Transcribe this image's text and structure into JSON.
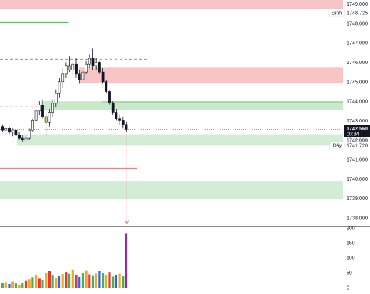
{
  "chart_data": {
    "type": "candlestick",
    "y_axis": {
      "range": [
        1737.6,
        1749.2
      ],
      "tick_labels": [
        "1749.000",
        "1748.000",
        "1747.000",
        "1746.000",
        "1745.000",
        "1744.000",
        "1743.000",
        "1742.000",
        "1741.000",
        "1740.000",
        "1739.000",
        "1738.000"
      ]
    },
    "current_price": {
      "label": "1742.560",
      "countdown": "00:34",
      "value": 1742.56,
      "color": "#131722"
    },
    "top_marker": {
      "tag": "Đỉnh",
      "label": "1748.725",
      "value": 1748.725
    },
    "bottom_marker": {
      "tag": "Đáy",
      "label": "1741.720",
      "value": 1741.72
    },
    "hidden_label": {
      "label": "1742.006",
      "value": 1742.006
    },
    "zones": [
      {
        "color": "#f7c5c5",
        "from": 1748.725,
        "to": 1749.25,
        "x_from": 0.0,
        "x_to": 1.0
      },
      {
        "color": "#f7c5c5",
        "from": 1744.95,
        "to": 1745.75,
        "x_from": 0.23,
        "x_to": 1.0
      },
      {
        "color": "#c9e9cb",
        "from": 1743.55,
        "to": 1744.0,
        "x_from": 0.12,
        "x_to": 1.0
      },
      {
        "color": "#a6d8aa",
        "from": 1743.9,
        "to": 1744.0,
        "x_from": 0.3,
        "x_to": 1.0
      },
      {
        "color": "#d3ecd5",
        "from": 1741.72,
        "to": 1742.3,
        "x_from": 0.05,
        "x_to": 1.0
      },
      {
        "color": "#d3ecd5",
        "from": 1738.95,
        "to": 1739.9,
        "x_from": 0.0,
        "x_to": 1.0
      }
    ],
    "lines": [
      {
        "value": 1747.5,
        "color": "#5b7bd5",
        "style": "solid",
        "x_from": 0.0,
        "x_to": 1.0
      },
      {
        "value": 1748.05,
        "color": "#4caf50",
        "style": "solid",
        "x_from": 0.0,
        "x_to": 0.2
      },
      {
        "value": 1746.15,
        "color": "#e57373",
        "style": "dashed",
        "x_from": 0.0,
        "x_to": 0.43
      },
      {
        "value": 1743.7,
        "color": "#e57373",
        "style": "dashed",
        "x_from": 0.0,
        "x_to": 0.12
      },
      {
        "value": 1740.55,
        "color": "#e57373",
        "style": "solid",
        "x_from": 0.0,
        "x_to": 0.4
      },
      {
        "value": 1742.56,
        "color": "#9e9e9e",
        "style": "dotted",
        "x_from": 0.0,
        "x_to": 1.0
      }
    ],
    "arrow": {
      "from": 1742.45,
      "to": 1737.7,
      "x": 0.37,
      "color": "#e57373"
    },
    "candles": [
      {
        "o": 1742.7,
        "h": 1742.8,
        "l": 1742.4,
        "c": 1742.5
      },
      {
        "o": 1742.5,
        "h": 1742.7,
        "l": 1742.3,
        "c": 1742.6
      },
      {
        "o": 1742.6,
        "h": 1742.7,
        "l": 1742.3,
        "c": 1742.4
      },
      {
        "o": 1742.4,
        "h": 1742.6,
        "l": 1742.2,
        "c": 1742.5
      },
      {
        "o": 1742.5,
        "h": 1742.75,
        "l": 1742.2,
        "c": 1742.25
      },
      {
        "o": 1742.25,
        "h": 1742.4,
        "l": 1742.0,
        "c": 1742.1
      },
      {
        "o": 1742.1,
        "h": 1742.25,
        "l": 1741.9,
        "c": 1742.0
      },
      {
        "o": 1742.0,
        "h": 1742.2,
        "l": 1741.72,
        "c": 1742.1
      },
      {
        "o": 1742.1,
        "h": 1742.6,
        "l": 1742.0,
        "c": 1742.5
      },
      {
        "o": 1742.5,
        "h": 1743.1,
        "l": 1742.4,
        "c": 1743.0
      },
      {
        "o": 1743.0,
        "h": 1743.6,
        "l": 1742.9,
        "c": 1743.5
      },
      {
        "o": 1743.5,
        "h": 1744.0,
        "l": 1743.3,
        "c": 1743.8
      },
      {
        "o": 1743.8,
        "h": 1744.1,
        "l": 1743.1,
        "c": 1743.2
      },
      {
        "o": 1743.2,
        "h": 1743.4,
        "l": 1742.2,
        "c": 1742.9
      },
      {
        "o": 1742.9,
        "h": 1743.6,
        "l": 1742.7,
        "c": 1743.4
      },
      {
        "o": 1743.4,
        "h": 1744.1,
        "l": 1743.2,
        "c": 1743.9
      },
      {
        "o": 1743.9,
        "h": 1744.6,
        "l": 1743.7,
        "c": 1744.4
      },
      {
        "o": 1744.4,
        "h": 1745.2,
        "l": 1744.2,
        "c": 1745.0
      },
      {
        "o": 1745.0,
        "h": 1745.7,
        "l": 1744.7,
        "c": 1745.4
      },
      {
        "o": 1745.4,
        "h": 1746.0,
        "l": 1745.2,
        "c": 1745.8
      },
      {
        "o": 1745.8,
        "h": 1746.3,
        "l": 1745.5,
        "c": 1745.6
      },
      {
        "o": 1745.6,
        "h": 1746.0,
        "l": 1745.3,
        "c": 1745.9
      },
      {
        "o": 1745.9,
        "h": 1746.2,
        "l": 1745.2,
        "c": 1745.4
      },
      {
        "o": 1745.4,
        "h": 1745.6,
        "l": 1744.9,
        "c": 1745.1
      },
      {
        "o": 1745.1,
        "h": 1745.7,
        "l": 1745.0,
        "c": 1745.5
      },
      {
        "o": 1745.5,
        "h": 1746.1,
        "l": 1745.4,
        "c": 1745.9
      },
      {
        "o": 1745.9,
        "h": 1746.4,
        "l": 1745.7,
        "c": 1746.2
      },
      {
        "o": 1746.2,
        "h": 1746.7,
        "l": 1745.6,
        "c": 1745.8
      },
      {
        "o": 1745.8,
        "h": 1746.2,
        "l": 1745.6,
        "c": 1746.0
      },
      {
        "o": 1746.0,
        "h": 1746.1,
        "l": 1745.4,
        "c": 1745.5
      },
      {
        "o": 1745.5,
        "h": 1745.7,
        "l": 1744.9,
        "c": 1745.0
      },
      {
        "o": 1745.0,
        "h": 1745.1,
        "l": 1744.4,
        "c": 1744.5
      },
      {
        "o": 1744.5,
        "h": 1744.6,
        "l": 1743.8,
        "c": 1743.9
      },
      {
        "o": 1743.9,
        "h": 1744.0,
        "l": 1743.3,
        "c": 1743.4
      },
      {
        "o": 1743.4,
        "h": 1743.6,
        "l": 1743.0,
        "c": 1743.1
      },
      {
        "o": 1743.1,
        "h": 1743.3,
        "l": 1742.8,
        "c": 1743.0
      },
      {
        "o": 1743.0,
        "h": 1743.2,
        "l": 1742.6,
        "c": 1742.8
      },
      {
        "o": 1742.8,
        "h": 1742.9,
        "l": 1742.4,
        "c": 1742.56
      }
    ],
    "volume": {
      "range": [
        0,
        200
      ],
      "tick_labels": [
        "200",
        "150",
        "100",
        "50",
        "0"
      ],
      "values": [
        15,
        18,
        12,
        20,
        14,
        10,
        16,
        22,
        28,
        35,
        42,
        30,
        25,
        48,
        55,
        40,
        32,
        38,
        45,
        52,
        46,
        60,
        41,
        36,
        50,
        58,
        44,
        39,
        47,
        55,
        49,
        43,
        52,
        37,
        41,
        46,
        38,
        180
      ],
      "colors": [
        "#4caf50",
        "#f5a623",
        "#2962ff",
        "#f5a623",
        "#4caf50",
        "#f5a623",
        "#4caf50",
        "#e53935",
        "#f5a623",
        "#4caf50",
        "#f5a623",
        "#e53935",
        "#4caf50",
        "#f5a623",
        "#e53935",
        "#4caf50",
        "#f5a623",
        "#2962ff",
        "#f5a623",
        "#e53935",
        "#4caf50",
        "#f5a623",
        "#e53935",
        "#2962ff",
        "#4caf50",
        "#f5a623",
        "#e53935",
        "#4caf50",
        "#f5a623",
        "#2962ff",
        "#4caf50",
        "#f5a623",
        "#e53935",
        "#4caf50",
        "#2962ff",
        "#f5a623",
        "#4caf50",
        "#9c27b0"
      ]
    }
  }
}
